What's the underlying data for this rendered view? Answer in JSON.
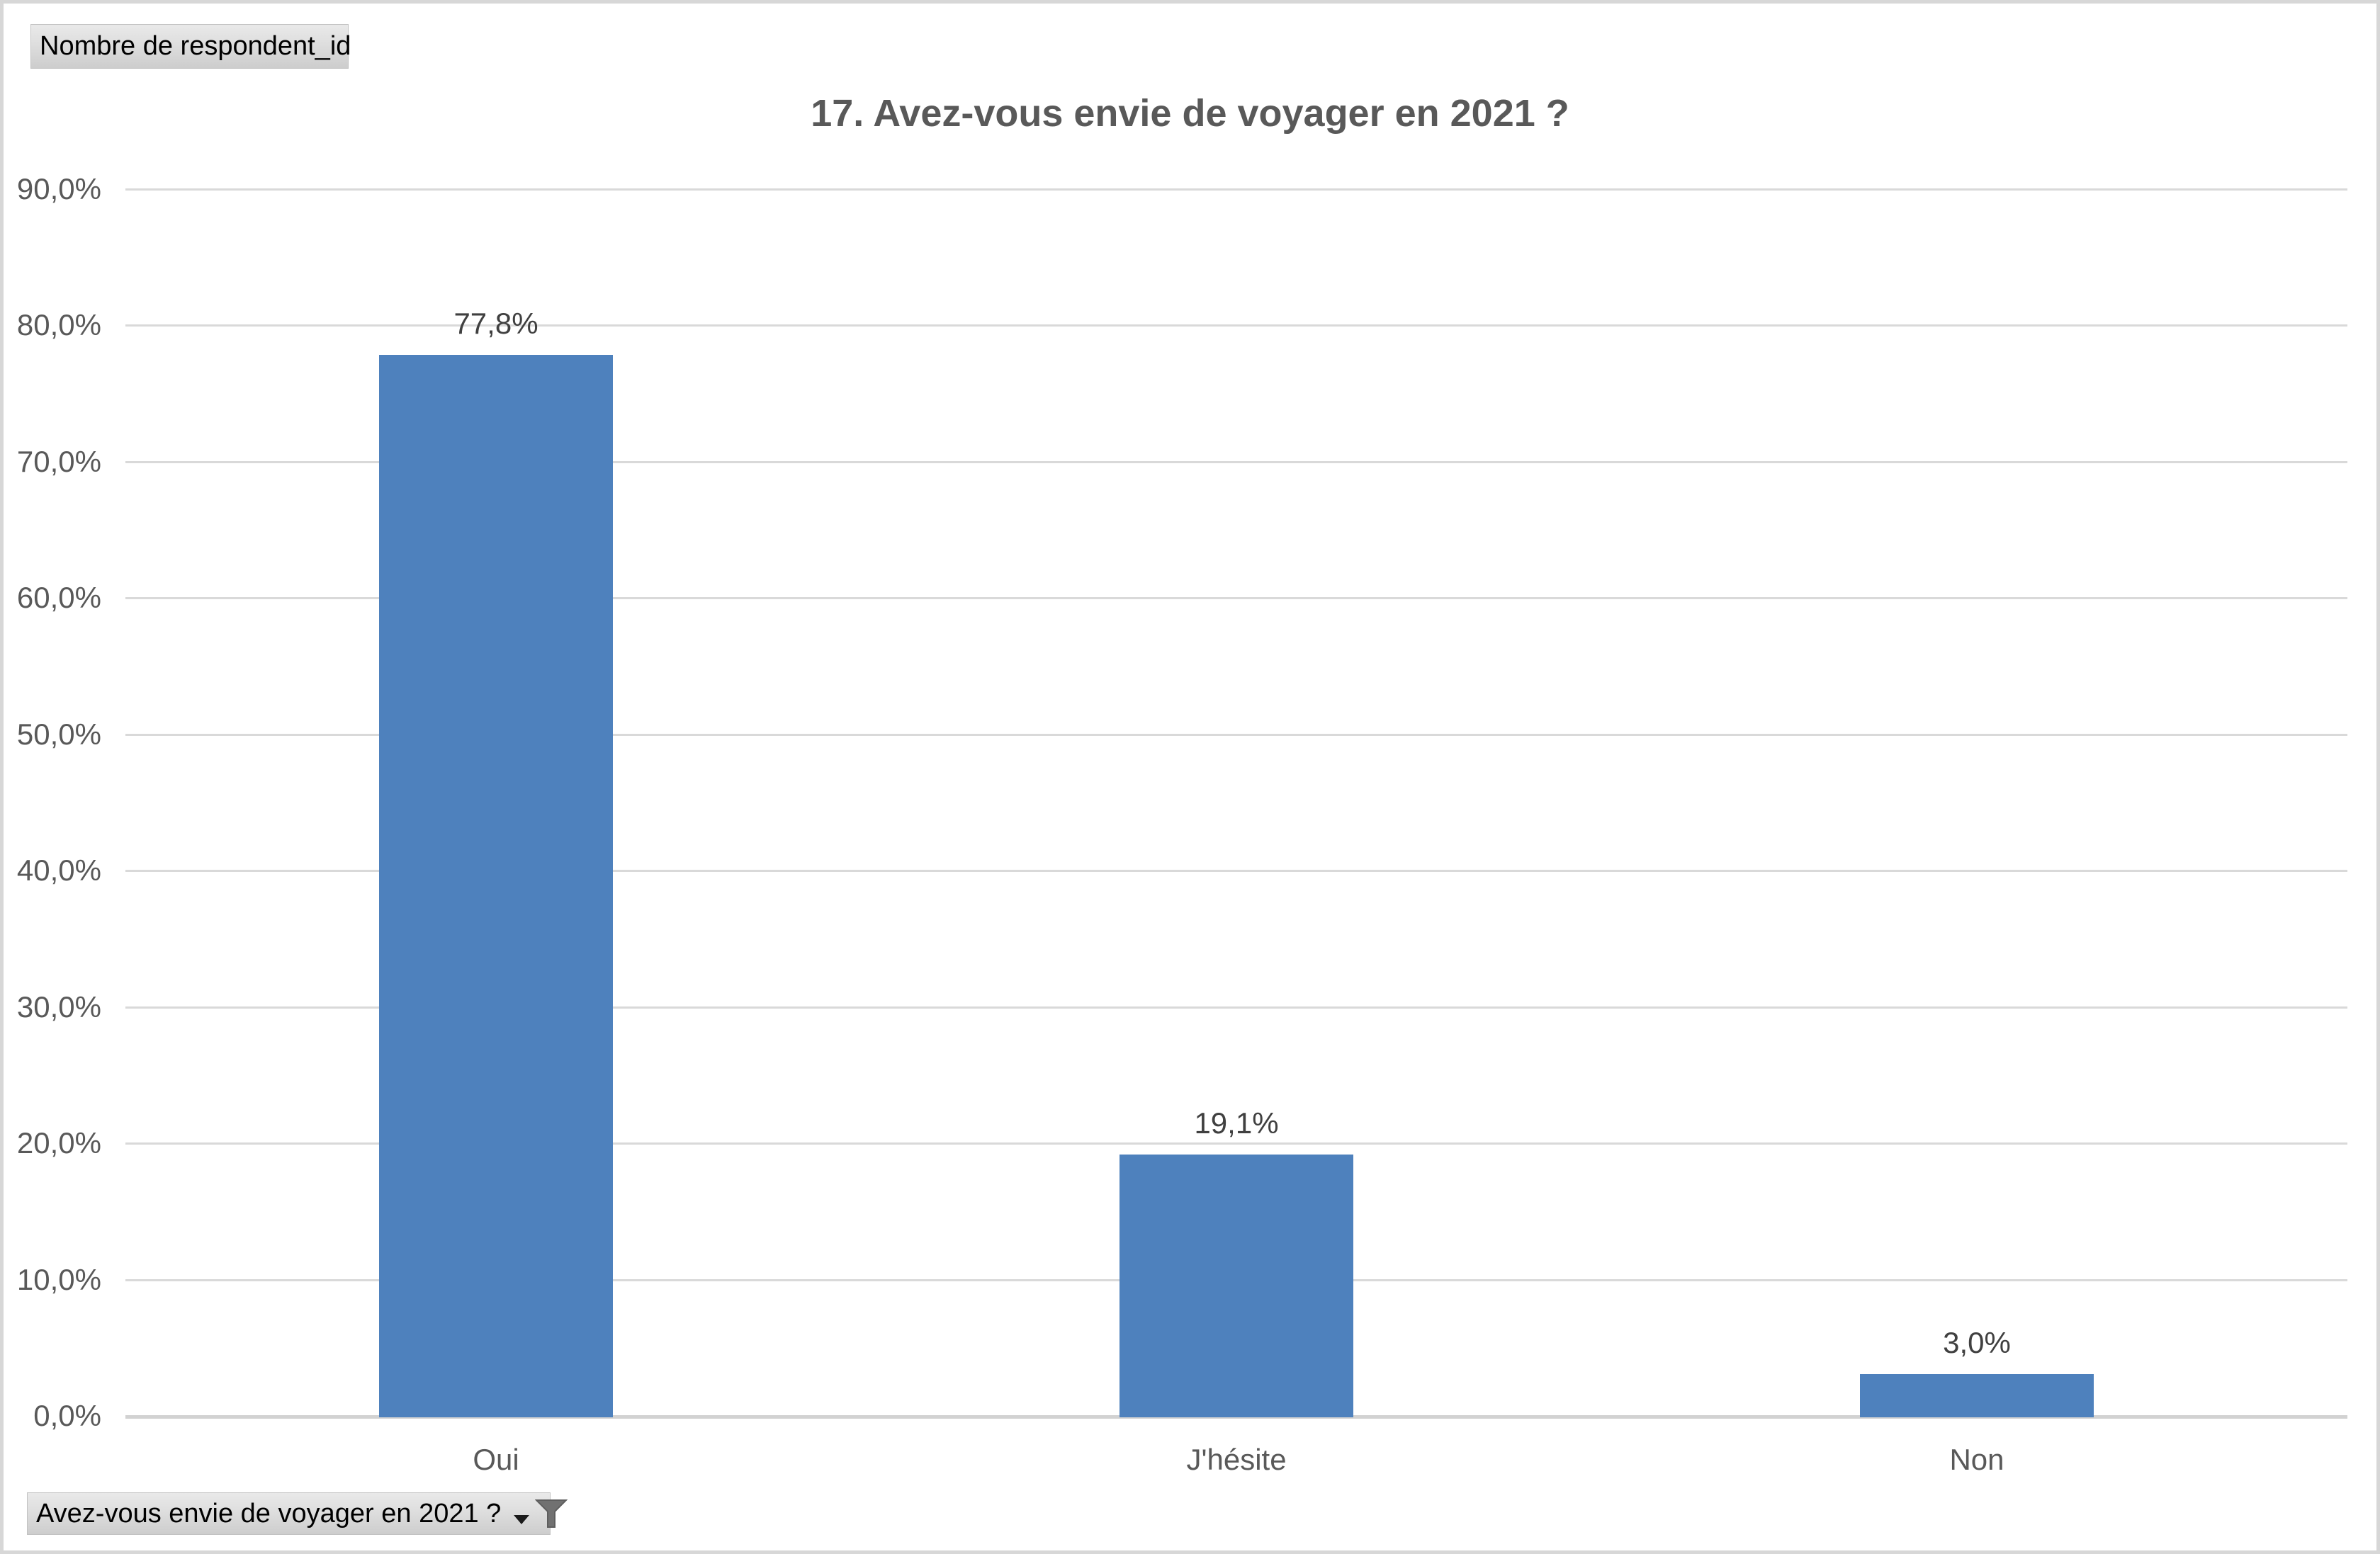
{
  "pivot_buttons": {
    "value_field_label": "Nombre de respondent_id",
    "filter_field_label": "Avez-vous envie de voyager en 2021 ?",
    "filter_icon": "funnel-icon",
    "dropdown_icon": "dropdown-arrow-icon"
  },
  "chart_data": {
    "type": "bar",
    "title": "17. Avez-vous envie de voyager en 2021 ?",
    "categories": [
      "Oui",
      "J'hésite",
      "Non"
    ],
    "values": [
      77.8,
      19.1,
      3.0
    ],
    "value_labels": [
      "77,8%",
      "19,1%",
      "3,0%"
    ],
    "y_ticks": [
      "90,0%",
      "80,0%",
      "70,0%",
      "60,0%",
      "50,0%",
      "40,0%",
      "30,0%",
      "20,0%",
      "10,0%",
      "0,0%"
    ],
    "ylim": [
      0,
      90
    ],
    "xlabel": "",
    "ylabel": "",
    "grid": true,
    "legend": "none",
    "bar_color": "#4e81bd",
    "gridline_color": "#d9d9d9",
    "title_color": "#595959",
    "tick_label_color": "#595959",
    "data_label_color": "#404040"
  }
}
